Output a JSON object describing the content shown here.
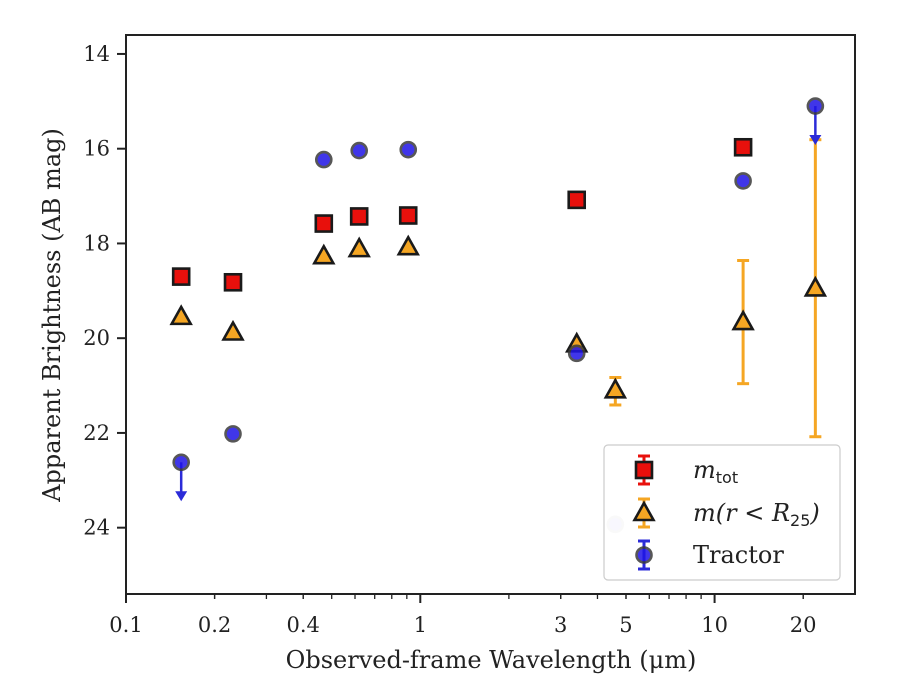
{
  "chart_data": {
    "type": "scatter",
    "xlabel": "Observed-frame Wavelength (μm)",
    "ylabel": "Apparent Brightness (AB mag)",
    "x_scale": "log",
    "y_inverted": true,
    "xlim": [
      0.1,
      30
    ],
    "ylim": [
      25.4,
      13.6
    ],
    "x_ticks": [
      {
        "value": 0.1,
        "label": "0.1"
      },
      {
        "value": 0.2,
        "label": "0.2"
      },
      {
        "value": 0.4,
        "label": "0.4"
      },
      {
        "value": 1,
        "label": "1"
      },
      {
        "value": 3,
        "label": "3"
      },
      {
        "value": 5,
        "label": "5"
      },
      {
        "value": 10,
        "label": "10"
      },
      {
        "value": 20,
        "label": "20"
      }
    ],
    "y_ticks": [
      {
        "value": 14,
        "label": "14"
      },
      {
        "value": 16,
        "label": "16"
      },
      {
        "value": 18,
        "label": "18"
      },
      {
        "value": 20,
        "label": "20"
      },
      {
        "value": 22,
        "label": "22"
      },
      {
        "value": 24,
        "label": "24"
      }
    ],
    "grid": false,
    "legend_position": "bottom-right",
    "series": [
      {
        "name": "m_tot",
        "label_main": "m",
        "label_sub": "tot",
        "marker": "square",
        "color": "#e8100c",
        "errorbar_color": "#e8100c",
        "points": [
          {
            "x": 0.154,
            "y": 18.7
          },
          {
            "x": 0.231,
            "y": 18.82
          },
          {
            "x": 0.47,
            "y": 17.58
          },
          {
            "x": 0.62,
            "y": 17.43
          },
          {
            "x": 0.91,
            "y": 17.41
          },
          {
            "x": 3.4,
            "y": 17.08
          },
          {
            "x": 12.5,
            "y": 15.97
          }
        ]
      },
      {
        "name": "m(r < R_25)",
        "label_main": "m(r < R",
        "label_sub": "25",
        "label_end": ")",
        "marker": "triangle",
        "color": "#f5a623",
        "errorbar_color": "#f5a623",
        "points": [
          {
            "x": 0.154,
            "y": 19.55
          },
          {
            "x": 0.231,
            "y": 19.88
          },
          {
            "x": 0.47,
            "y": 18.27
          },
          {
            "x": 0.62,
            "y": 18.12
          },
          {
            "x": 0.91,
            "y": 18.08
          },
          {
            "x": 3.4,
            "y": 20.13
          },
          {
            "x": 4.6,
            "y": 21.1,
            "err_low": 20.83,
            "err_high": 21.41
          },
          {
            "x": 12.5,
            "y": 19.66,
            "err_low": 18.36,
            "err_high": 20.96
          },
          {
            "x": 22,
            "y": 18.95,
            "err_low": 15.81,
            "err_high": 22.08
          }
        ]
      },
      {
        "name": "Tractor",
        "label_main": "Tractor",
        "marker": "circle",
        "color": "#1f14e6",
        "errorbar_color": "#2b2bd8",
        "points": [
          {
            "x": 0.154,
            "y": 22.62,
            "upper_limit": true
          },
          {
            "x": 0.231,
            "y": 22.02
          },
          {
            "x": 0.47,
            "y": 16.23
          },
          {
            "x": 0.62,
            "y": 16.04
          },
          {
            "x": 0.91,
            "y": 16.02
          },
          {
            "x": 3.4,
            "y": 20.32
          },
          {
            "x": 4.6,
            "y": 23.93,
            "faded": true
          },
          {
            "x": 12.5,
            "y": 16.68
          },
          {
            "x": 22,
            "y": 15.1,
            "upper_limit": true
          }
        ]
      }
    ]
  }
}
